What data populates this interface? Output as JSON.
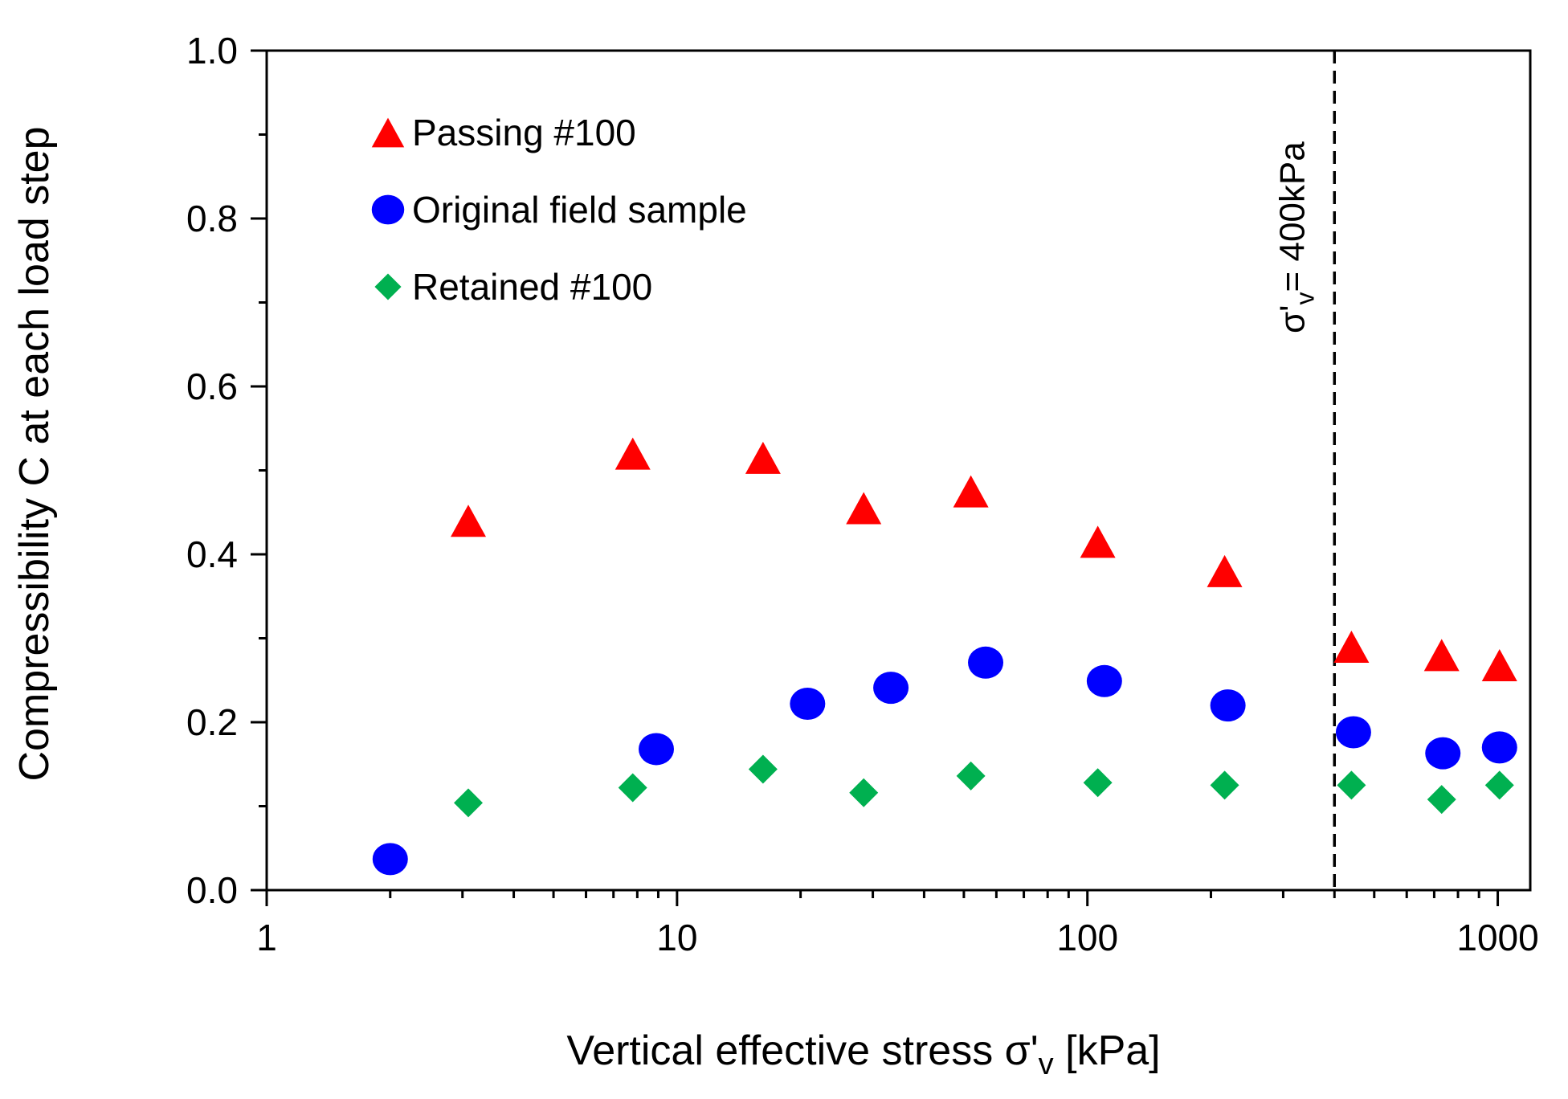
{
  "chart_data": {
    "type": "scatter",
    "xscale": "log",
    "title": "",
    "xlabel": "Vertical effective stress σ'v [kPa]",
    "xlabel_parts": {
      "main": "Vertical effective stress σ'",
      "sub": "v",
      "tail": " [kPa]"
    },
    "ylabel": "Compressibility C at each load step",
    "xlim": [
      1,
      1200
    ],
    "ylim": [
      0,
      1.0
    ],
    "x_ticks": [
      1,
      10,
      100,
      1000
    ],
    "x_tick_labels": [
      "1",
      "10",
      "100",
      "1000"
    ],
    "y_ticks": [
      0.0,
      0.2,
      0.4,
      0.6,
      0.8,
      1.0
    ],
    "y_tick_labels": [
      "0.0",
      "0.2",
      "0.4",
      "0.6",
      "0.8",
      "1.0"
    ],
    "grid": false,
    "legend_position": "top-left",
    "annotation": {
      "x": 400,
      "style": "dashed",
      "text": "σ'v= 400kPa",
      "text_parts": {
        "main": "σ'",
        "sub": "v",
        "tail": "= 400kPa"
      }
    },
    "series": [
      {
        "name": "Passing #100",
        "marker": "triangle",
        "color": "#ff0000",
        "points": [
          [
            3.1,
            0.44
          ],
          [
            7.8,
            0.52
          ],
          [
            16.2,
            0.515
          ],
          [
            28.5,
            0.455
          ],
          [
            52,
            0.475
          ],
          [
            106,
            0.415
          ],
          [
            216,
            0.38
          ],
          [
            440,
            0.29
          ],
          [
            730,
            0.28
          ],
          [
            1010,
            0.268
          ]
        ]
      },
      {
        "name": "Original field sample",
        "marker": "circle",
        "color": "#0000ff",
        "points": [
          [
            2.0,
            0.037
          ],
          [
            8.9,
            0.168
          ],
          [
            20.8,
            0.222
          ],
          [
            33.2,
            0.241
          ],
          [
            56.5,
            0.271
          ],
          [
            110,
            0.249
          ],
          [
            220,
            0.22
          ],
          [
            445,
            0.188
          ],
          [
            735,
            0.163
          ],
          [
            1010,
            0.17
          ]
        ]
      },
      {
        "name": "Retained #100",
        "marker": "diamond",
        "color": "#00b050",
        "points": [
          [
            3.1,
            0.104
          ],
          [
            7.8,
            0.122
          ],
          [
            16.2,
            0.144
          ],
          [
            28.5,
            0.116
          ],
          [
            52,
            0.136
          ],
          [
            106,
            0.128
          ],
          [
            216,
            0.125
          ],
          [
            440,
            0.125
          ],
          [
            730,
            0.108
          ],
          [
            1010,
            0.125
          ]
        ]
      }
    ]
  }
}
